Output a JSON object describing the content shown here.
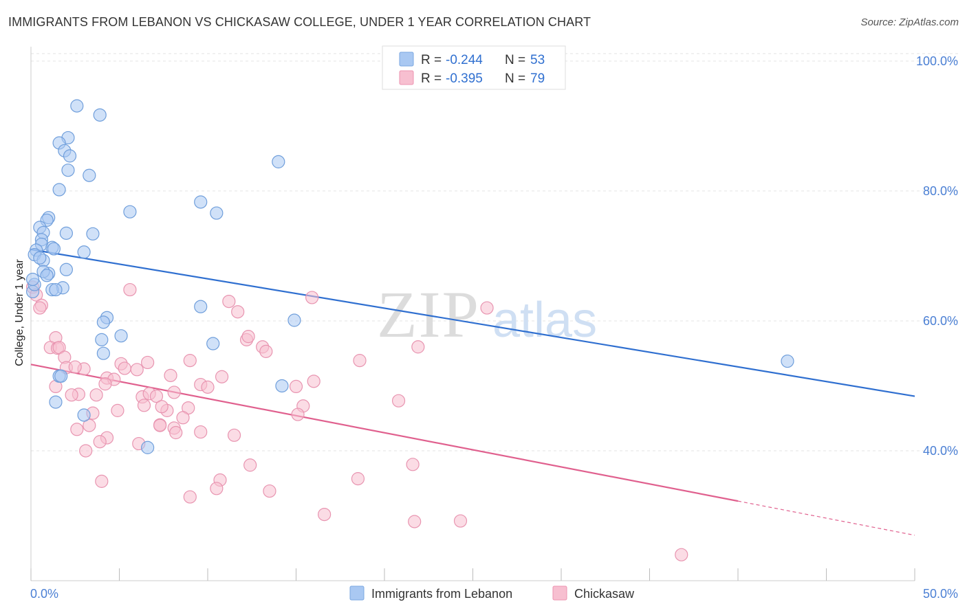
{
  "header": {
    "title": "IMMIGRANTS FROM LEBANON VS CHICKASAW COLLEGE, UNDER 1 YEAR CORRELATION CHART",
    "source": "Source: ZipAtlas.com"
  },
  "watermark": {
    "zip": "ZIP",
    "atlas": "atlas"
  },
  "legend": {
    "rows": [
      {
        "r_label": "R = ",
        "r_value": "-0.244",
        "n_label": "N = ",
        "n_value": "53",
        "color": "#a9c8f2",
        "stroke": "#7aa7e0"
      },
      {
        "r_label": "R = ",
        "r_value": "-0.395",
        "n_label": "N = ",
        "n_value": "79",
        "color": "#f7bfd0",
        "stroke": "#ec93b0"
      }
    ]
  },
  "bottom_legend": [
    {
      "label": "Immigrants from Lebanon",
      "color": "#a9c8f2",
      "stroke": "#7aa7e0"
    },
    {
      "label": "Chickasaw",
      "color": "#f7bfd0",
      "stroke": "#ec93b0"
    }
  ],
  "colors": {
    "blue_fill": "#a9c8f2",
    "blue_stroke": "#6f9edb",
    "blue_line": "#2f6fd0",
    "pink_fill": "#f7bfd0",
    "pink_stroke": "#e894b0",
    "pink_line": "#e0608e",
    "grid": "#e3e3e3",
    "axis_text": "#4a7fd4"
  },
  "chart_data": {
    "type": "scatter",
    "title": "IMMIGRANTS FROM LEBANON VS CHICKASAW COLLEGE, UNDER 1 YEAR CORRELATION CHART",
    "xlabel": "",
    "ylabel": "College, Under 1 year",
    "xlim": [
      0,
      50
    ],
    "ylim": [
      20,
      102
    ],
    "x_tick_labels": [
      "0.0%",
      "50.0%"
    ],
    "y_ticks": [
      40,
      60,
      80,
      100
    ],
    "y_tick_labels": [
      "40.0%",
      "60.0%",
      "80.0%",
      "100.0%"
    ],
    "grid": true,
    "legend_position": "top-center",
    "series": [
      {
        "name": "Immigrants from Lebanon",
        "color": "#a9c8f2",
        "trend": {
          "x": [
            0,
            50
          ],
          "y": [
            71.0,
            48.4
          ],
          "dashed_from": null
        },
        "points": [
          [
            2.6,
            93.1
          ],
          [
            3.9,
            91.7
          ],
          [
            2.1,
            88.2
          ],
          [
            1.6,
            87.4
          ],
          [
            1.9,
            86.2
          ],
          [
            2.2,
            85.4
          ],
          [
            2.1,
            83.2
          ],
          [
            3.3,
            82.4
          ],
          [
            1.6,
            80.2
          ],
          [
            14.0,
            84.5
          ],
          [
            9.6,
            78.3
          ],
          [
            5.6,
            76.8
          ],
          [
            10.5,
            76.6
          ],
          [
            1.0,
            75.9
          ],
          [
            0.9,
            75.5
          ],
          [
            0.5,
            74.4
          ],
          [
            0.7,
            73.6
          ],
          [
            2.0,
            73.5
          ],
          [
            3.5,
            73.4
          ],
          [
            0.6,
            72.5
          ],
          [
            0.6,
            71.8
          ],
          [
            1.2,
            71.3
          ],
          [
            1.3,
            71.1
          ],
          [
            0.3,
            70.9
          ],
          [
            3.0,
            70.6
          ],
          [
            0.2,
            70.2
          ],
          [
            0.7,
            69.3
          ],
          [
            0.5,
            69.7
          ],
          [
            1.0,
            67.3
          ],
          [
            2.0,
            67.9
          ],
          [
            0.7,
            67.6
          ],
          [
            0.9,
            67.0
          ],
          [
            1.8,
            65.1
          ],
          [
            1.2,
            64.8
          ],
          [
            1.4,
            64.8
          ],
          [
            0.1,
            64.5
          ],
          [
            0.2,
            65.6
          ],
          [
            9.6,
            62.2
          ],
          [
            4.3,
            60.5
          ],
          [
            4.1,
            59.8
          ],
          [
            14.9,
            60.1
          ],
          [
            5.1,
            57.7
          ],
          [
            4.0,
            57.1
          ],
          [
            10.3,
            56.5
          ],
          [
            4.1,
            55.0
          ],
          [
            1.6,
            51.5
          ],
          [
            1.7,
            51.5
          ],
          [
            14.2,
            50.0
          ],
          [
            1.4,
            47.5
          ],
          [
            3.0,
            45.5
          ],
          [
            6.6,
            40.5
          ],
          [
            42.8,
            53.8
          ],
          [
            0.1,
            66.4
          ]
        ]
      },
      {
        "name": "Chickasaw",
        "color": "#f7bfd0",
        "trend": {
          "x": [
            0,
            50
          ],
          "y": [
            53.3,
            27.0
          ],
          "dashed_from": 40
        },
        "points": [
          [
            0.1,
            65.2
          ],
          [
            0.3,
            64.0
          ],
          [
            0.6,
            62.4
          ],
          [
            0.5,
            62.0
          ],
          [
            5.6,
            64.8
          ],
          [
            11.2,
            63.0
          ],
          [
            11.7,
            61.4
          ],
          [
            15.9,
            63.6
          ],
          [
            25.8,
            62.0
          ],
          [
            1.4,
            57.4
          ],
          [
            1.1,
            55.9
          ],
          [
            1.5,
            55.8
          ],
          [
            1.6,
            55.9
          ],
          [
            1.9,
            54.4
          ],
          [
            2.0,
            52.8
          ],
          [
            3.0,
            52.6
          ],
          [
            5.1,
            53.4
          ],
          [
            6.6,
            53.6
          ],
          [
            9.0,
            53.9
          ],
          [
            12.2,
            57.1
          ],
          [
            12.3,
            57.6
          ],
          [
            13.1,
            56.0
          ],
          [
            13.3,
            55.3
          ],
          [
            21.9,
            56.0
          ],
          [
            18.6,
            53.9
          ],
          [
            5.3,
            52.7
          ],
          [
            6.0,
            52.5
          ],
          [
            7.9,
            51.6
          ],
          [
            10.8,
            51.4
          ],
          [
            4.3,
            51.2
          ],
          [
            4.7,
            51.0
          ],
          [
            4.2,
            50.3
          ],
          [
            9.6,
            50.2
          ],
          [
            10.0,
            49.8
          ],
          [
            15.0,
            49.9
          ],
          [
            16.0,
            50.7
          ],
          [
            1.4,
            49.9
          ],
          [
            2.7,
            48.7
          ],
          [
            2.3,
            48.6
          ],
          [
            3.7,
            48.6
          ],
          [
            6.3,
            48.3
          ],
          [
            6.7,
            48.8
          ],
          [
            7.1,
            48.4
          ],
          [
            8.1,
            49.0
          ],
          [
            20.8,
            47.7
          ],
          [
            4.9,
            46.2
          ],
          [
            8.9,
            46.6
          ],
          [
            15.4,
            46.9
          ],
          [
            3.5,
            45.8
          ],
          [
            8.6,
            45.1
          ],
          [
            7.3,
            44.0
          ],
          [
            8.1,
            43.5
          ],
          [
            2.6,
            43.3
          ],
          [
            3.3,
            43.9
          ],
          [
            7.7,
            46.2
          ],
          [
            15.1,
            45.6
          ],
          [
            9.6,
            42.9
          ],
          [
            8.2,
            42.8
          ],
          [
            11.5,
            42.4
          ],
          [
            4.3,
            42.0
          ],
          [
            3.9,
            41.4
          ],
          [
            6.1,
            41.1
          ],
          [
            3.1,
            40.0
          ],
          [
            12.4,
            37.8
          ],
          [
            21.6,
            37.9
          ],
          [
            10.7,
            35.5
          ],
          [
            18.5,
            35.7
          ],
          [
            4.0,
            35.3
          ],
          [
            10.5,
            34.2
          ],
          [
            13.5,
            33.8
          ],
          [
            9.0,
            32.9
          ],
          [
            16.6,
            30.2
          ],
          [
            21.7,
            29.1
          ],
          [
            24.3,
            29.2
          ],
          [
            36.8,
            24.0
          ],
          [
            7.3,
            43.9
          ],
          [
            7.4,
            46.8
          ],
          [
            6.4,
            47.0
          ],
          [
            2.5,
            52.9
          ]
        ]
      }
    ]
  }
}
